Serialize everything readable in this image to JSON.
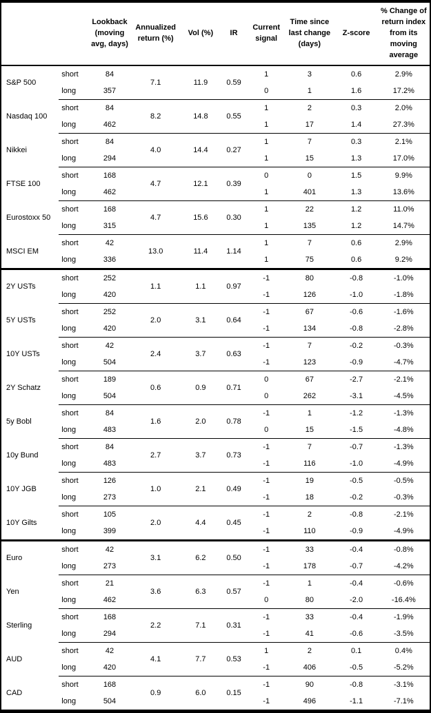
{
  "colors": {
    "background": "#ffffff",
    "text": "#000000",
    "border": "#000000"
  },
  "table": {
    "columns": [
      {
        "key": "asset",
        "label": ""
      },
      {
        "key": "horizon",
        "label": ""
      },
      {
        "key": "lookback",
        "label": "Lookback (moving avg, days)"
      },
      {
        "key": "annualized",
        "label": "Annualized return (%)"
      },
      {
        "key": "vol",
        "label": "Vol (%)"
      },
      {
        "key": "ir",
        "label": "IR"
      },
      {
        "key": "signal",
        "label": "Current signal"
      },
      {
        "key": "time",
        "label": "Time since last change (days)"
      },
      {
        "key": "zscore",
        "label": "Z-score"
      },
      {
        "key": "pct",
        "label": "% Change of return index from its moving average"
      }
    ],
    "sections": [
      {
        "name": "equities",
        "groups": [
          {
            "asset": "S&P 500",
            "annualized": "7.1",
            "vol": "11.9",
            "ir": "0.59",
            "rows": [
              {
                "horizon": "short",
                "lookback": "84",
                "signal": "1",
                "time": "3",
                "zscore": "0.6",
                "pct": "2.9%"
              },
              {
                "horizon": "long",
                "lookback": "357",
                "signal": "0",
                "time": "1",
                "zscore": "1.6",
                "pct": "17.2%"
              }
            ]
          },
          {
            "asset": "Nasdaq 100",
            "annualized": "8.2",
            "vol": "14.8",
            "ir": "0.55",
            "rows": [
              {
                "horizon": "short",
                "lookback": "84",
                "signal": "1",
                "time": "2",
                "zscore": "0.3",
                "pct": "2.0%"
              },
              {
                "horizon": "long",
                "lookback": "462",
                "signal": "1",
                "time": "17",
                "zscore": "1.4",
                "pct": "27.3%"
              }
            ]
          },
          {
            "asset": "Nikkei",
            "annualized": "4.0",
            "vol": "14.4",
            "ir": "0.27",
            "rows": [
              {
                "horizon": "short",
                "lookback": "84",
                "signal": "1",
                "time": "7",
                "zscore": "0.3",
                "pct": "2.1%"
              },
              {
                "horizon": "long",
                "lookback": "294",
                "signal": "1",
                "time": "15",
                "zscore": "1.3",
                "pct": "17.0%"
              }
            ]
          },
          {
            "asset": "FTSE 100",
            "annualized": "4.7",
            "vol": "12.1",
            "ir": "0.39",
            "rows": [
              {
                "horizon": "short",
                "lookback": "168",
                "signal": "0",
                "time": "0",
                "zscore": "1.5",
                "pct": "9.9%"
              },
              {
                "horizon": "long",
                "lookback": "462",
                "signal": "1",
                "time": "401",
                "zscore": "1.3",
                "pct": "13.6%"
              }
            ]
          },
          {
            "asset": "Eurostoxx 50",
            "annualized": "4.7",
            "vol": "15.6",
            "ir": "0.30",
            "rows": [
              {
                "horizon": "short",
                "lookback": "168",
                "signal": "1",
                "time": "22",
                "zscore": "1.2",
                "pct": "11.0%"
              },
              {
                "horizon": "long",
                "lookback": "315",
                "signal": "1",
                "time": "135",
                "zscore": "1.2",
                "pct": "14.7%"
              }
            ]
          },
          {
            "asset": "MSCI EM",
            "annualized": "13.0",
            "vol": "11.4",
            "ir": "1.14",
            "rows": [
              {
                "horizon": "short",
                "lookback": "42",
                "signal": "1",
                "time": "7",
                "zscore": "0.6",
                "pct": "2.9%"
              },
              {
                "horizon": "long",
                "lookback": "336",
                "signal": "1",
                "time": "75",
                "zscore": "0.6",
                "pct": "9.2%"
              }
            ]
          }
        ]
      },
      {
        "name": "bonds",
        "groups": [
          {
            "asset": "2Y USTs",
            "annualized": "1.1",
            "vol": "1.1",
            "ir": "0.97",
            "rows": [
              {
                "horizon": "short",
                "lookback": "252",
                "signal": "-1",
                "time": "80",
                "zscore": "-0.8",
                "pct": "-1.0%"
              },
              {
                "horizon": "long",
                "lookback": "420",
                "signal": "-1",
                "time": "126",
                "zscore": "-1.0",
                "pct": "-1.8%"
              }
            ]
          },
          {
            "asset": "5Y USTs",
            "annualized": "2.0",
            "vol": "3.1",
            "ir": "0.64",
            "rows": [
              {
                "horizon": "short",
                "lookback": "252",
                "signal": "-1",
                "time": "67",
                "zscore": "-0.6",
                "pct": "-1.6%"
              },
              {
                "horizon": "long",
                "lookback": "420",
                "signal": "-1",
                "time": "134",
                "zscore": "-0.8",
                "pct": "-2.8%"
              }
            ]
          },
          {
            "asset": "10Y USTs",
            "annualized": "2.4",
            "vol": "3.7",
            "ir": "0.63",
            "rows": [
              {
                "horizon": "short",
                "lookback": "42",
                "signal": "-1",
                "time": "7",
                "zscore": "-0.2",
                "pct": "-0.3%"
              },
              {
                "horizon": "long",
                "lookback": "504",
                "signal": "-1",
                "time": "123",
                "zscore": "-0.9",
                "pct": "-4.7%"
              }
            ]
          },
          {
            "asset": "2Y Schatz",
            "annualized": "0.6",
            "vol": "0.9",
            "ir": "0.71",
            "rows": [
              {
                "horizon": "short",
                "lookback": "189",
                "signal": "0",
                "time": "67",
                "zscore": "-2.7",
                "pct": "-2.1%"
              },
              {
                "horizon": "long",
                "lookback": "504",
                "signal": "0",
                "time": "262",
                "zscore": "-3.1",
                "pct": "-4.5%"
              }
            ]
          },
          {
            "asset": "5y Bobl",
            "annualized": "1.6",
            "vol": "2.0",
            "ir": "0.78",
            "rows": [
              {
                "horizon": "short",
                "lookback": "84",
                "signal": "-1",
                "time": "1",
                "zscore": "-1.2",
                "pct": "-1.3%"
              },
              {
                "horizon": "long",
                "lookback": "483",
                "signal": "0",
                "time": "15",
                "zscore": "-1.5",
                "pct": "-4.8%"
              }
            ]
          },
          {
            "asset": "10y Bund",
            "annualized": "2.7",
            "vol": "3.7",
            "ir": "0.73",
            "rows": [
              {
                "horizon": "short",
                "lookback": "84",
                "signal": "-1",
                "time": "7",
                "zscore": "-0.7",
                "pct": "-1.3%"
              },
              {
                "horizon": "long",
                "lookback": "483",
                "signal": "-1",
                "time": "116",
                "zscore": "-1.0",
                "pct": "-4.9%"
              }
            ]
          },
          {
            "asset": "10Y JGB",
            "annualized": "1.0",
            "vol": "2.1",
            "ir": "0.49",
            "rows": [
              {
                "horizon": "short",
                "lookback": "126",
                "signal": "-1",
                "time": "19",
                "zscore": "-0.5",
                "pct": "-0.5%"
              },
              {
                "horizon": "long",
                "lookback": "273",
                "signal": "-1",
                "time": "18",
                "zscore": "-0.2",
                "pct": "-0.3%"
              }
            ]
          },
          {
            "asset": "10Y Gilts",
            "annualized": "2.0",
            "vol": "4.4",
            "ir": "0.45",
            "rows": [
              {
                "horizon": "short",
                "lookback": "105",
                "signal": "-1",
                "time": "2",
                "zscore": "-0.8",
                "pct": "-2.1%"
              },
              {
                "horizon": "long",
                "lookback": "399",
                "signal": "-1",
                "time": "110",
                "zscore": "-0.9",
                "pct": "-4.9%"
              }
            ]
          }
        ]
      },
      {
        "name": "fx",
        "groups": [
          {
            "asset": "Euro",
            "annualized": "3.1",
            "vol": "6.2",
            "ir": "0.50",
            "rows": [
              {
                "horizon": "short",
                "lookback": "42",
                "signal": "-1",
                "time": "33",
                "zscore": "-0.4",
                "pct": "-0.8%"
              },
              {
                "horizon": "long",
                "lookback": "273",
                "signal": "-1",
                "time": "178",
                "zscore": "-0.7",
                "pct": "-4.2%"
              }
            ]
          },
          {
            "asset": "Yen",
            "annualized": "3.6",
            "vol": "6.3",
            "ir": "0.57",
            "rows": [
              {
                "horizon": "short",
                "lookback": "21",
                "signal": "-1",
                "time": "1",
                "zscore": "-0.4",
                "pct": "-0.6%"
              },
              {
                "horizon": "long",
                "lookback": "462",
                "signal": "0",
                "time": "80",
                "zscore": "-2.0",
                "pct": "-16.4%"
              }
            ]
          },
          {
            "asset": "Sterling",
            "annualized": "2.2",
            "vol": "7.1",
            "ir": "0.31",
            "rows": [
              {
                "horizon": "short",
                "lookback": "168",
                "signal": "-1",
                "time": "33",
                "zscore": "-0.4",
                "pct": "-1.9%"
              },
              {
                "horizon": "long",
                "lookback": "294",
                "signal": "-1",
                "time": "41",
                "zscore": "-0.6",
                "pct": "-3.5%"
              }
            ]
          },
          {
            "asset": "AUD",
            "annualized": "4.1",
            "vol": "7.7",
            "ir": "0.53",
            "rows": [
              {
                "horizon": "short",
                "lookback": "42",
                "signal": "1",
                "time": "2",
                "zscore": "0.1",
                "pct": "0.4%"
              },
              {
                "horizon": "long",
                "lookback": "420",
                "signal": "-1",
                "time": "406",
                "zscore": "-0.5",
                "pct": "-5.2%"
              }
            ]
          },
          {
            "asset": "CAD",
            "annualized": "0.9",
            "vol": "6.0",
            "ir": "0.15",
            "rows": [
              {
                "horizon": "short",
                "lookback": "168",
                "signal": "-1",
                "time": "90",
                "zscore": "-0.8",
                "pct": "-3.1%"
              },
              {
                "horizon": "long",
                "lookback": "504",
                "signal": "-1",
                "time": "496",
                "zscore": "-1.1",
                "pct": "-7.1%"
              }
            ]
          }
        ]
      }
    ]
  }
}
